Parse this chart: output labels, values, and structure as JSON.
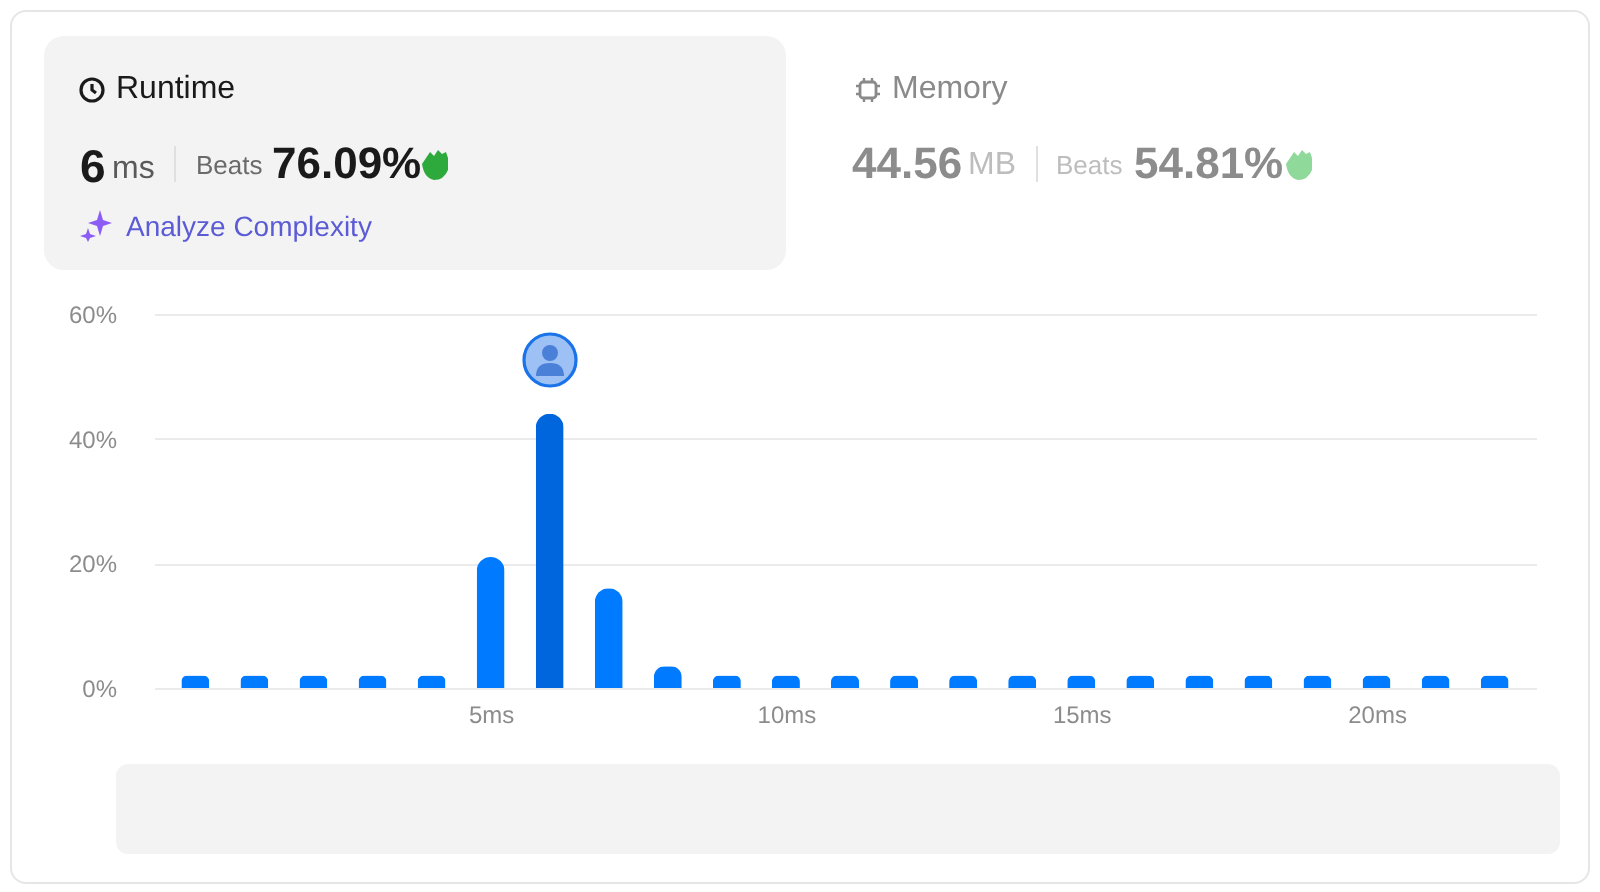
{
  "chart_data": [
    {
      "type": "other",
      "title": "Runtime",
      "annotations": [
        "6",
        "ms",
        "Beats",
        "76.09%",
        "Analyze Complexity"
      ]
    },
    {
      "type": "other",
      "title": "Memory",
      "annotations": [
        "44.56",
        "MB",
        "Beats",
        "54.81%"
      ]
    },
    {
      "type": "bar",
      "x": [
        0,
        1,
        2,
        3,
        4,
        5,
        6,
        7,
        8,
        9,
        10,
        11,
        12,
        13,
        14,
        15,
        16,
        17,
        18,
        19,
        20,
        21,
        22
      ],
      "values": [
        2,
        2,
        2,
        2,
        2,
        21,
        44,
        16,
        3.5,
        2,
        2,
        2,
        2,
        2,
        2,
        2,
        2,
        2,
        2,
        2,
        2,
        2,
        2
      ],
      "colors": [
        "#007bff",
        "#007bff",
        "#007bff",
        "#007bff",
        "#007bff",
        "#007bff",
        "#0066dd",
        "#007bff",
        "#007bff",
        "#007bff",
        "#007bff",
        "#007bff",
        "#007bff",
        "#007bff",
        "#007bff",
        "#007bff",
        "#007bff",
        "#007bff",
        "#007bff",
        "#007bff",
        "#007bff",
        "#007bff",
        "#007bff"
      ],
      "xlim": [
        -0.7,
        22.7
      ],
      "xticks": [
        {
          "value": 5,
          "label": "5ms"
        },
        {
          "value": 10,
          "label": "10ms"
        },
        {
          "value": 15,
          "label": "15ms"
        },
        {
          "value": 20,
          "label": "20ms"
        }
      ],
      "ylim": [
        0,
        60
      ],
      "yticks": [
        {
          "value": 0,
          "label": "0%"
        },
        {
          "value": 20,
          "label": "20%"
        },
        {
          "value": 40,
          "label": "40%"
        },
        {
          "value": 60,
          "label": "60%"
        }
      ],
      "grid": "y"
    }
  ]
}
